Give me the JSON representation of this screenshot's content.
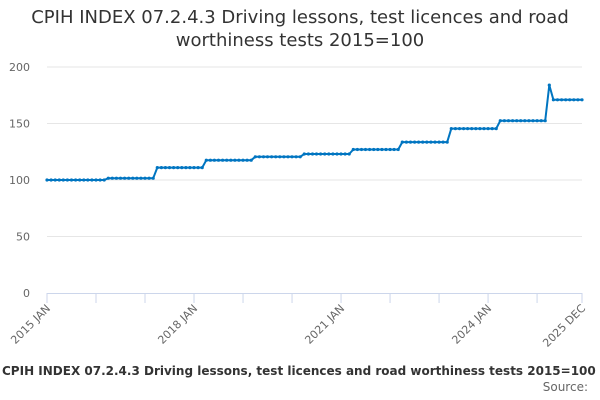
{
  "chart_title": "CPIH INDEX 07.2.4.3 Driving lessons, test licences and road worthiness tests 2015=100",
  "legend_label": "CPIH INDEX 07.2.4.3 Driving lessons, test licences and road worthiness tests 2015=100",
  "source_label": "Source:",
  "colors": {
    "series": "#0075c1",
    "grid": "#e6e6e6",
    "axis": "#ccd6eb"
  },
  "chart_data": {
    "type": "line",
    "title": "CPIH INDEX 07.2.4.3 Driving lessons, test licences and road worthiness tests 2015=100",
    "xlabel": "",
    "ylabel": "",
    "ylim": [
      0,
      200
    ],
    "yticks": [
      0,
      50,
      100,
      150,
      200
    ],
    "xtick_labels": [
      "2015 JAN",
      "2018 JAN",
      "2021 JAN",
      "2024 JAN",
      "2025 DEC"
    ],
    "grid": true,
    "legend_position": "bottom",
    "x_start": "2015 JAN",
    "x_end": "2025 DEC",
    "series": [
      {
        "name": "CPIH INDEX 07.2.4.3 Driving lessons, test licences and road worthiness tests 2015=100",
        "segments": [
          {
            "from": "2015 JAN",
            "to": "2016 MAR",
            "value": 100.0
          },
          {
            "from": "2016 APR",
            "to": "2017 MAR",
            "value": 101.6
          },
          {
            "from": "2017 APR",
            "to": "2018 MAR",
            "value": 111.0
          },
          {
            "from": "2018 APR",
            "to": "2019 MAR",
            "value": 117.5
          },
          {
            "from": "2019 APR",
            "to": "2020 MAR",
            "value": 120.5
          },
          {
            "from": "2020 APR",
            "to": "2021 MAR",
            "value": 123.0
          },
          {
            "from": "2021 APR",
            "to": "2022 MAR",
            "value": 127.0
          },
          {
            "from": "2022 APR",
            "to": "2023 MAR",
            "value": 133.5
          },
          {
            "from": "2023 APR",
            "to": "2024 MAR",
            "value": 145.5
          },
          {
            "from": "2024 APR",
            "to": "2025 MAR",
            "value": 152.5
          },
          {
            "from": "2025 APR",
            "to": "2025 APR",
            "value": 184.0
          },
          {
            "from": "2025 MAY",
            "to": "2025 DEC",
            "value": 171.0
          }
        ]
      }
    ]
  }
}
